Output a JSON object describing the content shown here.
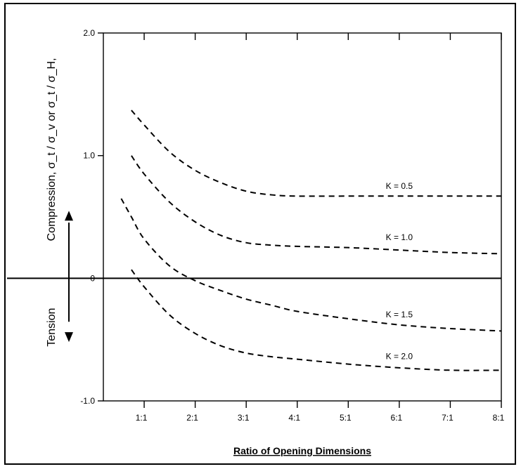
{
  "chart_data": {
    "type": "line",
    "xlabel": "Ratio of Opening Dimensions",
    "ylabel": "Compression, σ_t / σ_v or σ_t / σ_H,",
    "lower_label": "Tension",
    "x_tick_labels": [
      "1:1",
      "2:1",
      "3:1",
      "4:1",
      "5:1",
      "6:1",
      "7:1",
      "8:1"
    ],
    "y_tick_labels": [
      "2.0",
      "1.0",
      "0",
      "-1.0"
    ],
    "xlim": [
      0.2,
      8
    ],
    "ylim": [
      -1.0,
      2.0
    ],
    "series": [
      {
        "name": "K = 0.5",
        "x": [
          0.75,
          1.0,
          1.5,
          2.0,
          2.5,
          3.0,
          3.5,
          4.0,
          5.0,
          6.0,
          7.0,
          8.0
        ],
        "y": [
          1.37,
          1.25,
          1.03,
          0.88,
          0.78,
          0.71,
          0.68,
          0.67,
          0.67,
          0.67,
          0.67,
          0.67
        ]
      },
      {
        "name": "K = 1.0",
        "x": [
          0.75,
          1.0,
          1.5,
          2.0,
          2.5,
          3.0,
          3.5,
          4.0,
          5.0,
          6.0,
          7.0,
          8.0
        ],
        "y": [
          1.0,
          0.85,
          0.62,
          0.46,
          0.35,
          0.29,
          0.27,
          0.26,
          0.25,
          0.23,
          0.21,
          0.2
        ]
      },
      {
        "name": "K = 1.5",
        "x": [
          0.55,
          0.75,
          1.0,
          1.5,
          2.0,
          2.5,
          3.0,
          3.5,
          4.0,
          5.0,
          6.0,
          7.0,
          8.0
        ],
        "y": [
          0.65,
          0.5,
          0.32,
          0.1,
          -0.02,
          -0.1,
          -0.17,
          -0.22,
          -0.27,
          -0.33,
          -0.38,
          -0.41,
          -0.43
        ]
      },
      {
        "name": "K = 2.0",
        "x": [
          0.75,
          1.0,
          1.5,
          2.0,
          2.5,
          3.0,
          3.5,
          4.0,
          5.0,
          6.0,
          7.0,
          8.0
        ],
        "y": [
          0.07,
          -0.07,
          -0.3,
          -0.45,
          -0.55,
          -0.61,
          -0.64,
          -0.66,
          -0.7,
          -0.73,
          -0.75,
          -0.75
        ]
      }
    ],
    "line_style": "dashed",
    "line_color": "#000000"
  }
}
